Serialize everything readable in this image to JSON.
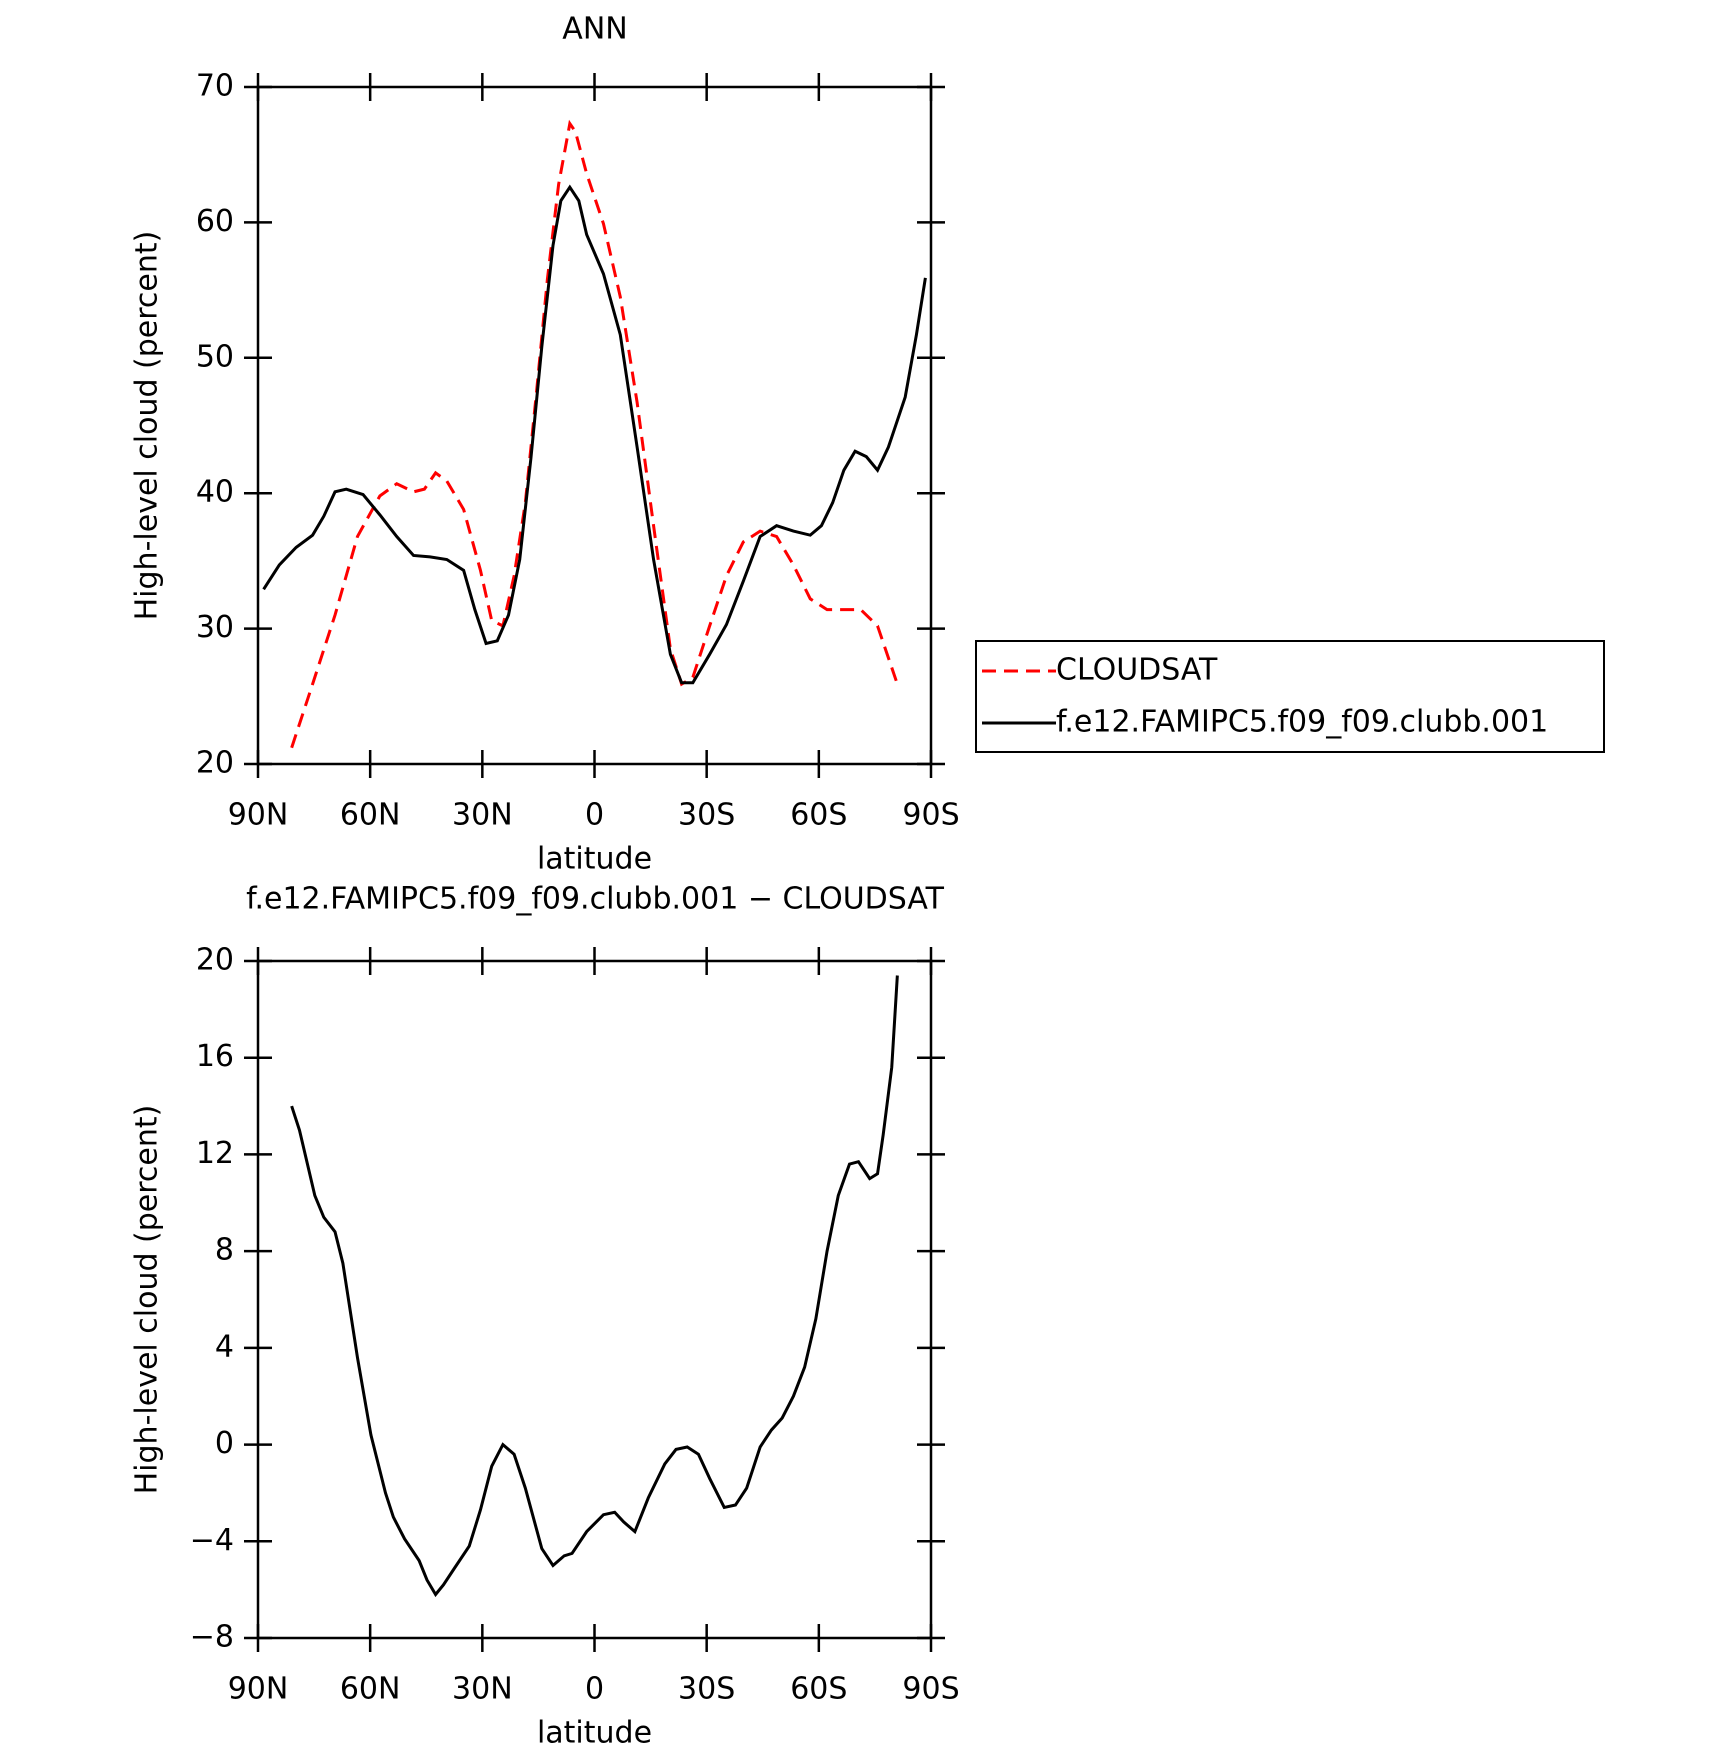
{
  "chart_data": [
    {
      "type": "line",
      "title": "ANN",
      "xlabel": "latitude",
      "ylabel": "High-level cloud (percent)",
      "xlim": [
        90,
        -90
      ],
      "ylim": [
        20,
        70
      ],
      "xticks": [
        {
          "value": 90,
          "label": "90N"
        },
        {
          "value": 60,
          "label": "60N"
        },
        {
          "value": 30,
          "label": "30N"
        },
        0,
        {
          "value": -30,
          "label": "30S"
        },
        {
          "value": -60,
          "label": "60S"
        },
        {
          "value": -90,
          "label": "90S"
        }
      ],
      "yticks": [
        20,
        30,
        40,
        50,
        60,
        70
      ],
      "legend": "right",
      "series": [
        {
          "name": "CLOUDSAT",
          "color": "#ff0000",
          "style": "dashed",
          "x": [
            81,
            75.4,
            69.4,
            63.4,
            57.4,
            52.9,
            48.4,
            45.5,
            42.5,
            39.5,
            35,
            30.5,
            27.5,
            24.5,
            21.5,
            18.5,
            15.5,
            12.6,
            9.6,
            6.6,
            5.1,
            2.1,
            -2.4,
            -6.9,
            -11.4,
            -15.8,
            -20.3,
            -23.3,
            -26.3,
            -30.8,
            -35.3,
            -39.8,
            -44.3,
            -48.7,
            -53.2,
            -57.7,
            -62.2,
            -66.7,
            -71.2,
            -75.7,
            -81
          ],
          "values": [
            21.2,
            25.9,
            31,
            36.8,
            39.8,
            40.7,
            40.1,
            40.3,
            41.5,
            40.9,
            38.8,
            34.3,
            30.6,
            30.2,
            33.9,
            39.3,
            47.5,
            55.8,
            62.8,
            67.3,
            66.7,
            63.6,
            59.9,
            54.5,
            46.7,
            37.6,
            28.5,
            25.9,
            26.4,
            30.2,
            33.9,
            36.4,
            37.2,
            36.8,
            34.7,
            32.2,
            31.4,
            31.4,
            31.4,
            30.2,
            25.9
          ]
        },
        {
          "name": "f.e12.FAMIPC5.f09_f09.clubb.001",
          "color": "#000000",
          "style": "solid",
          "x": [
            88.5,
            84.3,
            79.8,
            75.4,
            72.4,
            69.4,
            66.4,
            61.9,
            57.4,
            52.9,
            48.4,
            44,
            39.5,
            35,
            32,
            29,
            26,
            23,
            20,
            17,
            14.1,
            11.1,
            9,
            6.6,
            4.2,
            2.1,
            -2.4,
            -6.9,
            -11.4,
            -15.8,
            -20.3,
            -23.3,
            -26.3,
            -30.8,
            -35.3,
            -39.8,
            -44.3,
            -48.7,
            -53.2,
            -57.7,
            -60.7,
            -63.7,
            -66.7,
            -69.7,
            -72.7,
            -75.7,
            -78.6,
            -83.1,
            -86.1,
            -88.5
          ],
          "values": [
            32.9,
            34.7,
            36,
            36.9,
            38.3,
            40.1,
            40.3,
            39.9,
            38.4,
            36.8,
            35.4,
            35.3,
            35.1,
            34.3,
            31.4,
            28.9,
            29.1,
            31,
            35.1,
            42.6,
            50.8,
            58.3,
            61.6,
            62.6,
            61.6,
            59.1,
            56.2,
            51.7,
            43.4,
            35.1,
            28.1,
            26,
            26,
            28.1,
            30.3,
            33.5,
            36.8,
            37.6,
            37.2,
            36.9,
            37.6,
            39.3,
            41.7,
            43.1,
            42.7,
            41.7,
            43.4,
            47.1,
            51.7,
            55.9
          ]
        }
      ]
    },
    {
      "type": "line",
      "title": "f.e12.FAMIPC5.f09_f09.clubb.001 − CLOUDSAT",
      "xlabel": "latitude",
      "ylabel": "High-level cloud (percent)",
      "xlim": [
        90,
        -90
      ],
      "ylim": [
        -8,
        20
      ],
      "xticks": [
        {
          "value": 90,
          "label": "90N"
        },
        {
          "value": 60,
          "label": "60N"
        },
        {
          "value": 30,
          "label": "30N"
        },
        0,
        {
          "value": -30,
          "label": "30S"
        },
        {
          "value": -60,
          "label": "60S"
        },
        {
          "value": -90,
          "label": "90S"
        }
      ],
      "yticks": [
        {
          "value": -8,
          "label": "−8"
        },
        {
          "value": -4,
          "label": "−4"
        },
        0,
        4,
        8,
        12,
        16,
        20
      ],
      "series": [
        {
          "color": "#000000",
          "style": "solid",
          "x": [
            81,
            78.9,
            74.8,
            72.4,
            69.4,
            67.3,
            63.4,
            59.8,
            55.9,
            53.8,
            50.8,
            46.9,
            44.8,
            42.5,
            40.4,
            37.4,
            33.5,
            30.5,
            27.5,
            24.5,
            21.5,
            18.5,
            14.1,
            11.1,
            8.1,
            6,
            2.1,
            -2.4,
            -5.4,
            -7.8,
            -10.8,
            -14.4,
            -18.8,
            -21.8,
            -24.8,
            -27.8,
            -30.8,
            -34.7,
            -37.7,
            -40.7,
            -44.3,
            -47.3,
            -50.2,
            -53.2,
            -56.2,
            -59.2,
            -62.2,
            -65.2,
            -68.2,
            -70.6,
            -73.6,
            -75.7,
            -77.2,
            -79.5,
            -81
          ],
          "values": [
            14,
            13,
            10.3,
            9.4,
            8.8,
            7.5,
            3.6,
            0.4,
            -2,
            -3,
            -3.9,
            -4.8,
            -5.6,
            -6.2,
            -5.8,
            -5.1,
            -4.2,
            -2.7,
            -0.9,
            0,
            -0.4,
            -1.8,
            -4.3,
            -5,
            -4.6,
            -4.5,
            -3.6,
            -2.9,
            -2.8,
            -3.2,
            -3.6,
            -2.2,
            -0.8,
            -0.2,
            -0.1,
            -0.4,
            -1.4,
            -2.6,
            -2.5,
            -1.8,
            -0.1,
            0.6,
            1.1,
            2,
            3.2,
            5.2,
            8,
            10.3,
            11.6,
            11.7,
            11,
            11.2,
            12.8,
            15.6,
            19.4
          ]
        }
      ]
    }
  ]
}
